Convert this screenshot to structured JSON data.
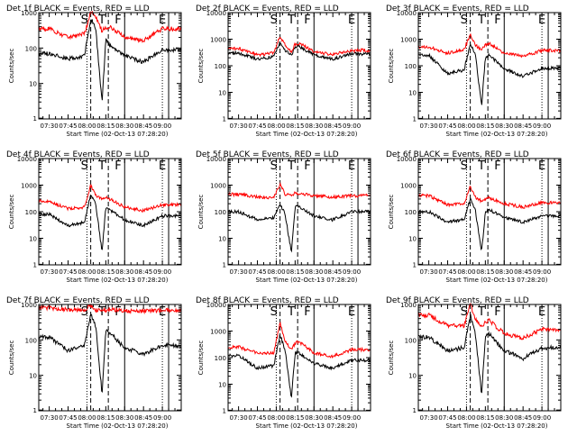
{
  "figure": {
    "start_time_label": "Start Time (02-Oct-13 07:28:20)",
    "ylabel": "Counts/sec",
    "colors": {
      "events": "#000000",
      "lld": "#ff0000",
      "axes": "#000000"
    }
  },
  "chart_data": [
    {
      "type": "line",
      "title": "Det 1f BLACK = Events, RED = LLD",
      "xlabel": "Start Time (02-Oct-13 07:28:20)",
      "ylabel": "Counts/sec",
      "y_scale": "log",
      "ylim": [
        1,
        1000
      ],
      "x_ticks": [
        "07:30",
        "07:45",
        "08:00",
        "08:15",
        "08:30",
        "08:45",
        "09:00"
      ],
      "y_ticks": [
        {
          "v": 1,
          "label": "1"
        },
        {
          "v": 10,
          "label": "10"
        },
        {
          "v": 100,
          "label": "100"
        },
        {
          "v": 1000,
          "label": "1000"
        }
      ],
      "markers": [
        {
          "t": "S",
          "label": "S"
        },
        {
          "t": "T",
          "label": "T"
        },
        {
          "t": "F",
          "label": "F"
        },
        {
          "t": "E",
          "label": "E"
        }
      ],
      "series": [
        {
          "name": "Events",
          "color": "#000000",
          "x": [
            "07:30",
            "07:45",
            "07:58",
            "08:03",
            "08:07",
            "08:12",
            "08:15",
            "08:18",
            "08:30",
            "08:45",
            "09:00"
          ],
          "values": [
            70,
            50,
            60,
            700,
            350,
            3,
            160,
            120,
            60,
            40,
            90
          ]
        },
        {
          "name": "LLD",
          "color": "#ff0000",
          "x": [
            "07:30",
            "07:45",
            "07:58",
            "08:03",
            "08:07",
            "08:12",
            "08:15",
            "08:18",
            "08:30",
            "08:45",
            "09:00"
          ],
          "values": [
            350,
            200,
            250,
            1000,
            800,
            300,
            380,
            400,
            200,
            160,
            350
          ]
        }
      ]
    },
    {
      "type": "line",
      "title": "Det 2f BLACK = Events, RED = LLD",
      "xlabel": "Start Time (02-Oct-13 07:28:20)",
      "ylabel": "Counts/sec",
      "y_scale": "log",
      "ylim": [
        1,
        10000
      ],
      "x_ticks": [
        "07:30",
        "07:45",
        "08:00",
        "08:15",
        "08:30",
        "08:45",
        "09:00"
      ],
      "y_ticks": [
        {
          "v": 1,
          "label": "1"
        },
        {
          "v": 10,
          "label": "10"
        },
        {
          "v": 100,
          "label": "100"
        },
        {
          "v": 1000,
          "label": "1000"
        },
        {
          "v": 10000,
          "label": "10000"
        }
      ],
      "markers": [
        {
          "t": "S",
          "label": "S"
        },
        {
          "t": "T",
          "label": "T"
        },
        {
          "t": "F",
          "label": "F"
        },
        {
          "t": "E",
          "label": "E"
        }
      ],
      "series": [
        {
          "name": "Events",
          "color": "#000000",
          "x": [
            "07:30",
            "07:45",
            "07:58",
            "08:03",
            "08:07",
            "08:12",
            "08:15",
            "08:18",
            "08:30",
            "08:45",
            "09:00"
          ],
          "values": [
            300,
            180,
            220,
            800,
            400,
            250,
            500,
            550,
            250,
            180,
            280
          ]
        },
        {
          "name": "LLD",
          "color": "#ff0000",
          "x": [
            "07:30",
            "07:45",
            "07:58",
            "08:03",
            "08:07",
            "08:12",
            "08:15",
            "08:18",
            "08:30",
            "08:45",
            "09:00"
          ],
          "values": [
            450,
            250,
            300,
            1300,
            600,
            350,
            650,
            700,
            350,
            260,
            380
          ]
        }
      ]
    },
    {
      "type": "line",
      "title": "Det 3f BLACK = Events, RED = LLD",
      "xlabel": "Start Time (02-Oct-13 07:28:20)",
      "ylabel": "Counts/sec",
      "y_scale": "log",
      "ylim": [
        1,
        10000
      ],
      "x_ticks": [
        "07:30",
        "07:45",
        "08:00",
        "08:15",
        "08:30",
        "08:45",
        "09:00"
      ],
      "y_ticks": [
        {
          "v": 1,
          "label": "1"
        },
        {
          "v": 10,
          "label": "10"
        },
        {
          "v": 100,
          "label": "100"
        },
        {
          "v": 1000,
          "label": "1000"
        },
        {
          "v": 10000,
          "label": "10000"
        }
      ],
      "markers": [
        {
          "t": "S",
          "label": "S"
        },
        {
          "t": "T",
          "label": "T"
        },
        {
          "t": "F",
          "label": "F"
        },
        {
          "t": "E",
          "label": "E"
        }
      ],
      "series": [
        {
          "name": "Events",
          "color": "#000000",
          "x": [
            "07:30",
            "07:45",
            "07:58",
            "08:03",
            "08:07",
            "08:12",
            "08:15",
            "08:18",
            "08:30",
            "08:45",
            "09:00"
          ],
          "values": [
            250,
            50,
            70,
            600,
            300,
            3,
            200,
            250,
            80,
            40,
            80
          ]
        },
        {
          "name": "LLD",
          "color": "#ff0000",
          "x": [
            "07:30",
            "07:45",
            "07:58",
            "08:03",
            "08:07",
            "08:12",
            "08:15",
            "08:18",
            "08:30",
            "08:45",
            "09:00"
          ],
          "values": [
            500,
            300,
            400,
            1500,
            600,
            400,
            600,
            700,
            300,
            220,
            380
          ]
        }
      ]
    },
    {
      "type": "line",
      "title": "Det 4f BLACK = Events, RED = LLD",
      "xlabel": "Start Time (02-Oct-13 07:28:20)",
      "ylabel": "Counts/sec",
      "y_scale": "log",
      "ylim": [
        1,
        10000
      ],
      "x_ticks": [
        "07:30",
        "07:45",
        "08:00",
        "08:15",
        "08:30",
        "08:45",
        "09:00"
      ],
      "y_ticks": [
        {
          "v": 1,
          "label": "1"
        },
        {
          "v": 10,
          "label": "10"
        },
        {
          "v": 100,
          "label": "100"
        },
        {
          "v": 1000,
          "label": "1000"
        },
        {
          "v": 10000,
          "label": "10000"
        }
      ],
      "markers": [
        {
          "t": "S",
          "label": "S"
        },
        {
          "t": "T",
          "label": "T"
        },
        {
          "t": "F",
          "label": "F"
        },
        {
          "t": "E",
          "label": "E"
        }
      ],
      "series": [
        {
          "name": "Events",
          "color": "#000000",
          "x": [
            "07:30",
            "07:45",
            "07:58",
            "08:03",
            "08:07",
            "08:12",
            "08:15",
            "08:18",
            "08:30",
            "08:45",
            "09:00"
          ],
          "values": [
            80,
            30,
            40,
            450,
            200,
            3,
            150,
            120,
            50,
            30,
            70
          ]
        },
        {
          "name": "LLD",
          "color": "#ff0000",
          "x": [
            "07:30",
            "07:45",
            "07:58",
            "08:03",
            "08:07",
            "08:12",
            "08:15",
            "08:18",
            "08:30",
            "08:45",
            "09:00"
          ],
          "values": [
            250,
            130,
            150,
            1000,
            400,
            300,
            350,
            300,
            150,
            110,
            180
          ]
        }
      ]
    },
    {
      "type": "line",
      "title": "Det 5f BLACK = Events, RED = LLD",
      "xlabel": "Start Time (02-Oct-13 07:28:20)",
      "ylabel": "Counts/sec",
      "y_scale": "log",
      "ylim": [
        1,
        10000
      ],
      "x_ticks": [
        "07:30",
        "07:45",
        "08:00",
        "08:15",
        "08:30",
        "08:45",
        "09:00"
      ],
      "y_ticks": [
        {
          "v": 1,
          "label": "1"
        },
        {
          "v": 10,
          "label": "10"
        },
        {
          "v": 100,
          "label": "100"
        },
        {
          "v": 1000,
          "label": "1000"
        },
        {
          "v": 10000,
          "label": "10000"
        }
      ],
      "markers": [
        {
          "t": "S",
          "label": "S"
        },
        {
          "t": "T",
          "label": "T"
        },
        {
          "t": "F",
          "label": "F"
        },
        {
          "t": "E",
          "label": "E"
        }
      ],
      "series": [
        {
          "name": "Events",
          "color": "#000000",
          "x": [
            "07:30",
            "07:45",
            "07:58",
            "08:03",
            "08:07",
            "08:12",
            "08:15",
            "08:18",
            "08:30",
            "08:45",
            "09:00"
          ],
          "values": [
            100,
            50,
            60,
            200,
            80,
            3,
            150,
            160,
            70,
            50,
            100
          ]
        },
        {
          "name": "LLD",
          "color": "#ff0000",
          "x": [
            "07:30",
            "07:45",
            "07:58",
            "08:03",
            "08:07",
            "08:12",
            "08:15",
            "08:18",
            "08:30",
            "08:45",
            "09:00"
          ],
          "values": [
            450,
            350,
            350,
            1100,
            450,
            400,
            500,
            500,
            400,
            350,
            400
          ]
        }
      ]
    },
    {
      "type": "line",
      "title": "Det 6f BLACK = Events, RED = LLD",
      "xlabel": "Start Time (02-Oct-13 07:28:20)",
      "ylabel": "Counts/sec",
      "y_scale": "log",
      "ylim": [
        1,
        10000
      ],
      "x_ticks": [
        "07:30",
        "07:45",
        "08:00",
        "08:15",
        "08:30",
        "08:45",
        "09:00"
      ],
      "y_ticks": [
        {
          "v": 1,
          "label": "1"
        },
        {
          "v": 10,
          "label": "10"
        },
        {
          "v": 100,
          "label": "100"
        },
        {
          "v": 1000,
          "label": "1000"
        },
        {
          "v": 10000,
          "label": "10000"
        }
      ],
      "markers": [
        {
          "t": "S",
          "label": "S"
        },
        {
          "t": "T",
          "label": "T"
        },
        {
          "t": "F",
          "label": "F"
        },
        {
          "t": "E",
          "label": "E"
        }
      ],
      "series": [
        {
          "name": "Events",
          "color": "#000000",
          "x": [
            "07:30",
            "07:45",
            "07:58",
            "08:03",
            "08:07",
            "08:12",
            "08:15",
            "08:18",
            "08:30",
            "08:45",
            "09:00"
          ],
          "values": [
            100,
            40,
            50,
            300,
            120,
            3,
            100,
            120,
            60,
            40,
            70
          ]
        },
        {
          "name": "LLD",
          "color": "#ff0000",
          "x": [
            "07:30",
            "07:45",
            "07:58",
            "08:03",
            "08:07",
            "08:12",
            "08:15",
            "08:18",
            "08:30",
            "08:45",
            "09:00"
          ],
          "values": [
            400,
            180,
            200,
            900,
            350,
            250,
            300,
            330,
            200,
            150,
            220
          ]
        }
      ]
    },
    {
      "type": "line",
      "title": "Det 7f BLACK = Events, RED = LLD",
      "xlabel": "Start Time (02-Oct-13 07:28:20)",
      "ylabel": "Counts/sec",
      "y_scale": "log",
      "ylim": [
        1,
        1000
      ],
      "x_ticks": [
        "07:30",
        "07:45",
        "08:00",
        "08:15",
        "08:30",
        "08:45",
        "09:00"
      ],
      "y_ticks": [
        {
          "v": 1,
          "label": "1"
        },
        {
          "v": 10,
          "label": "10"
        },
        {
          "v": 100,
          "label": "100"
        },
        {
          "v": 1000,
          "label": "1000"
        }
      ],
      "markers": [
        {
          "t": "S",
          "label": "S"
        },
        {
          "t": "T",
          "label": "T"
        },
        {
          "t": "F",
          "label": "F"
        },
        {
          "t": "E",
          "label": "E"
        }
      ],
      "series": [
        {
          "name": "Events",
          "color": "#000000",
          "x": [
            "07:30",
            "07:45",
            "07:58",
            "08:03",
            "08:07",
            "08:12",
            "08:15",
            "08:18",
            "08:30",
            "08:45",
            "09:00"
          ],
          "values": [
            120,
            50,
            70,
            550,
            250,
            3,
            200,
            160,
            60,
            40,
            70
          ]
        },
        {
          "name": "LLD",
          "color": "#ff0000",
          "x": [
            "07:30",
            "07:45",
            "07:58",
            "08:03",
            "08:07",
            "08:12",
            "08:15",
            "08:18",
            "08:30",
            "08:45",
            "09:00"
          ],
          "values": [
            800,
            700,
            700,
            950,
            700,
            700,
            700,
            750,
            650,
            650,
            700
          ]
        }
      ]
    },
    {
      "type": "line",
      "title": "Det 8f BLACK = Events, RED = LLD",
      "xlabel": "Start Time (02-Oct-13 07:28:20)",
      "ylabel": "Counts/sec",
      "y_scale": "log",
      "ylim": [
        1,
        10000
      ],
      "x_ticks": [
        "07:30",
        "07:45",
        "08:00",
        "08:15",
        "08:30",
        "08:45",
        "09:00"
      ],
      "y_ticks": [
        {
          "v": 1,
          "label": "1"
        },
        {
          "v": 10,
          "label": "10"
        },
        {
          "v": 100,
          "label": "100"
        },
        {
          "v": 1000,
          "label": "1000"
        },
        {
          "v": 10000,
          "label": "10000"
        }
      ],
      "markers": [
        {
          "t": "S",
          "label": "S"
        },
        {
          "t": "T",
          "label": "T"
        },
        {
          "t": "F",
          "label": "F"
        },
        {
          "t": "E",
          "label": "E"
        }
      ],
      "series": [
        {
          "name": "Events",
          "color": "#000000",
          "x": [
            "07:30",
            "07:45",
            "07:58",
            "08:03",
            "08:07",
            "08:12",
            "08:15",
            "08:18",
            "08:30",
            "08:45",
            "09:00"
          ],
          "values": [
            120,
            40,
            50,
            700,
            200,
            3,
            150,
            150,
            60,
            40,
            80
          ]
        },
        {
          "name": "LLD",
          "color": "#ff0000",
          "x": [
            "07:30",
            "07:45",
            "07:58",
            "08:03",
            "08:07",
            "08:12",
            "08:15",
            "08:18",
            "08:30",
            "08:45",
            "09:00"
          ],
          "values": [
            250,
            150,
            150,
            2000,
            400,
            200,
            350,
            400,
            150,
            110,
            200
          ]
        }
      ]
    },
    {
      "type": "line",
      "title": "Det 9f BLACK = Events, RED = LLD",
      "xlabel": "Start Time (02-Oct-13 07:28:20)",
      "ylabel": "Counts/sec",
      "y_scale": "log",
      "ylim": [
        1,
        1000
      ],
      "x_ticks": [
        "07:30",
        "07:45",
        "08:00",
        "08:15",
        "08:30",
        "08:45",
        "09:00"
      ],
      "y_ticks": [
        {
          "v": 1,
          "label": "1"
        },
        {
          "v": 10,
          "label": "10"
        },
        {
          "v": 100,
          "label": "100"
        },
        {
          "v": 1000,
          "label": "1000"
        }
      ],
      "markers": [
        {
          "t": "S",
          "label": "S"
        },
        {
          "t": "T",
          "label": "T"
        },
        {
          "t": "F",
          "label": "F"
        },
        {
          "t": "E",
          "label": "E"
        }
      ],
      "series": [
        {
          "name": "Events",
          "color": "#000000",
          "x": [
            "07:30",
            "07:45",
            "07:58",
            "08:03",
            "08:07",
            "08:12",
            "08:15",
            "08:18",
            "08:30",
            "08:45",
            "09:00"
          ],
          "values": [
            120,
            50,
            60,
            500,
            150,
            3,
            120,
            150,
            50,
            30,
            60
          ]
        },
        {
          "name": "LLD",
          "color": "#ff0000",
          "x": [
            "07:30",
            "07:45",
            "07:58",
            "08:03",
            "08:07",
            "08:12",
            "08:15",
            "08:18",
            "08:30",
            "08:45",
            "09:00"
          ],
          "values": [
            500,
            250,
            250,
            1000,
            400,
            250,
            300,
            350,
            150,
            110,
            200
          ]
        }
      ]
    }
  ]
}
